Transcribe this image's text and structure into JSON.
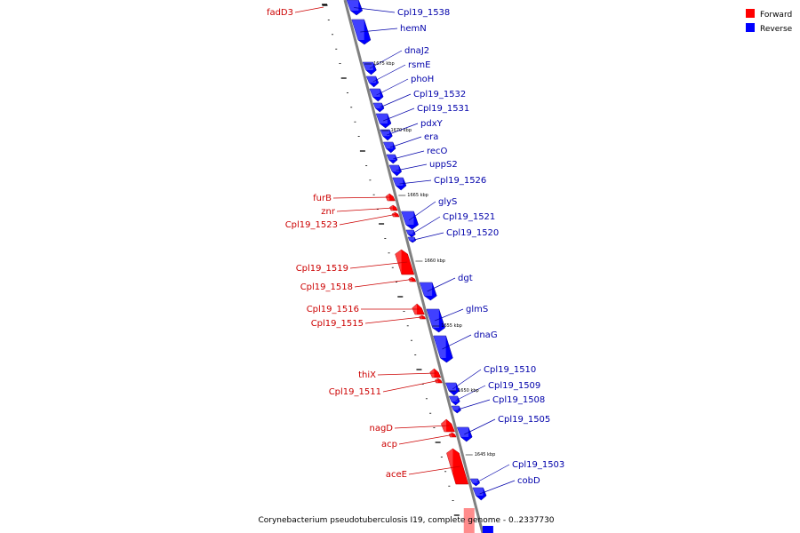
{
  "caption": "Corynebacterium pseudotuberculosis I19, complete genome - 0..2337730",
  "legend": [
    {
      "label": "Forward",
      "color": "#ff0000"
    },
    {
      "label": "Reverse",
      "color": "#0000ff"
    }
  ],
  "colors": {
    "forward": "#ff0000",
    "forward_label": "#cc0000",
    "reverse": "#0000ff",
    "reverse_label": "#0000aa",
    "backbone": "#808080",
    "tick": "#000000"
  },
  "ticks": [
    "1675 kbp",
    "1670 kbp",
    "1665 kbp",
    "1660 kbp",
    "1655 kbp",
    "1650 kbp",
    "1645 kbp"
  ],
  "genes": [
    {
      "name": "fadD3",
      "strand": "forward"
    },
    {
      "name": "Cpl19_1538",
      "strand": "reverse"
    },
    {
      "name": "hemN",
      "strand": "reverse"
    },
    {
      "name": "dnaJ2",
      "strand": "reverse"
    },
    {
      "name": "rsmE",
      "strand": "reverse"
    },
    {
      "name": "phoH",
      "strand": "reverse"
    },
    {
      "name": "Cpl19_1532",
      "strand": "reverse"
    },
    {
      "name": "Cpl19_1531",
      "strand": "reverse"
    },
    {
      "name": "pdxY",
      "strand": "reverse"
    },
    {
      "name": "era",
      "strand": "reverse"
    },
    {
      "name": "recO",
      "strand": "reverse"
    },
    {
      "name": "uppS2",
      "strand": "reverse"
    },
    {
      "name": "Cpl19_1526",
      "strand": "reverse"
    },
    {
      "name": "glyS",
      "strand": "reverse"
    },
    {
      "name": "Cpl19_1521",
      "strand": "reverse"
    },
    {
      "name": "Cpl19_1520",
      "strand": "reverse"
    },
    {
      "name": "furB",
      "strand": "forward"
    },
    {
      "name": "znr",
      "strand": "forward"
    },
    {
      "name": "Cpl19_1523",
      "strand": "forward"
    },
    {
      "name": "Cpl19_1519",
      "strand": "forward"
    },
    {
      "name": "Cpl19_1518",
      "strand": "forward"
    },
    {
      "name": "dgt",
      "strand": "reverse"
    },
    {
      "name": "glmS",
      "strand": "reverse"
    },
    {
      "name": "Cpl19_1516",
      "strand": "forward"
    },
    {
      "name": "Cpl19_1515",
      "strand": "forward"
    },
    {
      "name": "dnaG",
      "strand": "reverse"
    },
    {
      "name": "Cpl19_1510",
      "strand": "reverse"
    },
    {
      "name": "Cpl19_1509",
      "strand": "reverse"
    },
    {
      "name": "Cpl19_1508",
      "strand": "reverse"
    },
    {
      "name": "thiX",
      "strand": "forward"
    },
    {
      "name": "Cpl19_1511",
      "strand": "forward"
    },
    {
      "name": "Cpl19_1505",
      "strand": "reverse"
    },
    {
      "name": "nagD",
      "strand": "forward"
    },
    {
      "name": "acp",
      "strand": "forward"
    },
    {
      "name": "Cpl19_1503",
      "strand": "reverse"
    },
    {
      "name": "cobD",
      "strand": "reverse"
    },
    {
      "name": "aceE",
      "strand": "forward"
    }
  ]
}
